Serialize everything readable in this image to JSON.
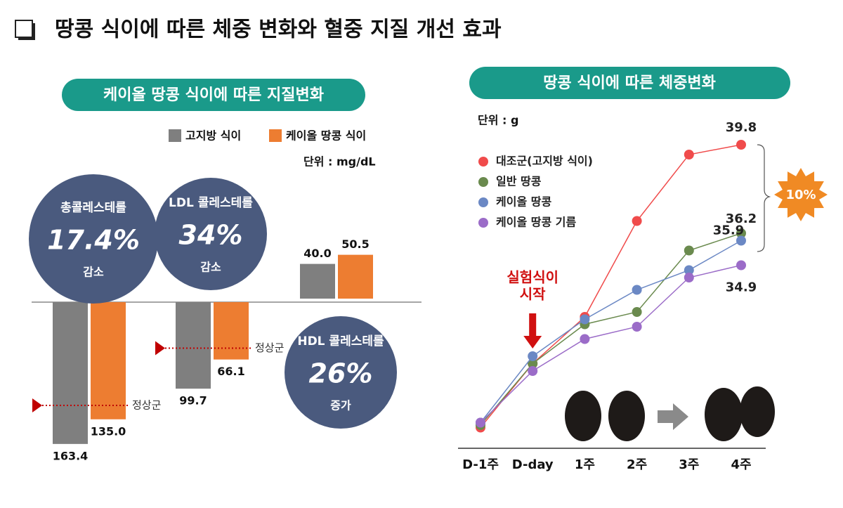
{
  "title": "땅콩 식이에 따른 체중 변화와 혈중 지질 개선 효과",
  "chart_data": [
    {
      "type": "bar",
      "title": "케이올 땅콩 식이에 따른 지질변화",
      "unit": "단위 : mg/dL",
      "categories": [
        "총콜레스테롤",
        "LDL 콜레스테롤",
        "HDL 콜레스테롤"
      ],
      "circle_notes": [
        {
          "percent": "17.4%",
          "text": "감소"
        },
        {
          "percent": "34%",
          "text": "감소"
        },
        {
          "percent": "26%",
          "text": "증가"
        }
      ],
      "circle_color": "#4a5a7e",
      "bar_direction": [
        "down",
        "down",
        "up"
      ],
      "series": [
        {
          "name": "고지방 식이",
          "color": "#7f7f7f",
          "values": [
            163.4,
            99.7,
            40.0
          ],
          "value_labels": [
            "163.4",
            "99.7",
            "40.0"
          ]
        },
        {
          "name": "케이올 땅콩 식이",
          "color": "#ed7d31",
          "values": [
            135.0,
            66.1,
            50.5
          ],
          "value_labels": [
            "135.0",
            "66.1",
            "50.5"
          ]
        }
      ],
      "ylim": [
        0,
        170
      ],
      "reference_lines": [
        {
          "label": "정상군",
          "category": 0,
          "value": 119
        },
        {
          "label": "정상군",
          "category": 1,
          "value": 53
        }
      ],
      "reference_color": "#c00000"
    },
    {
      "type": "line",
      "title": "땅콩 식이에 따른 체중변화",
      "unit": "단위 : g",
      "categories": [
        "D-1주",
        "D-day",
        "1주",
        "2주",
        "3주",
        "4주"
      ],
      "series": [
        {
          "name": "대조군(고지방 식이)",
          "color": "#f04b4b",
          "values": [
            28.3,
            30.9,
            32.8,
            36.7,
            39.4,
            39.8
          ]
        },
        {
          "name": "일반 땅콩",
          "color": "#6a8a4e",
          "values": [
            28.4,
            30.9,
            32.5,
            33.0,
            35.5,
            36.2
          ]
        },
        {
          "name": "케이올 땅콩",
          "color": "#6b88c4",
          "values": [
            28.5,
            31.2,
            32.7,
            33.9,
            34.7,
            35.9
          ]
        },
        {
          "name": "케이올 땅콩 기름",
          "color": "#9b6cc8",
          "values": [
            28.5,
            30.6,
            31.9,
            32.4,
            34.4,
            34.9
          ]
        }
      ],
      "label_last": true,
      "ylim": [
        27.5,
        40.5
      ],
      "annotation": [
        "실험식이",
        "시작"
      ],
      "highlight": "10%"
    }
  ]
}
